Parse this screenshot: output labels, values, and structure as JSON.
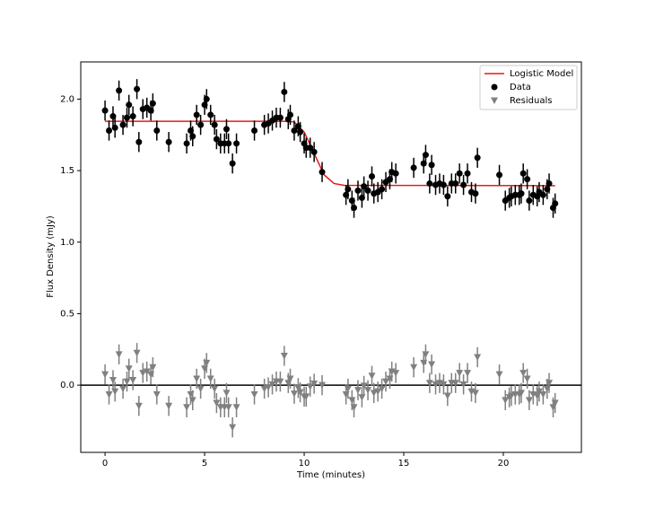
{
  "chart_data": {
    "type": "scatter",
    "xlabel": "Time (minutes)",
    "ylabel": "Flux Density (mJy)",
    "xlim": [
      -1.22,
      23.92
    ],
    "ylim": [
      -0.47,
      2.26
    ],
    "xticks": [
      0,
      5,
      10,
      15,
      20
    ],
    "yticks": [
      {
        "value": 0,
        "label": "0.0"
      },
      {
        "value": 0.5,
        "label": "0.5"
      },
      {
        "value": 1,
        "label": "1.0"
      },
      {
        "value": 1.5,
        "label": "1.5"
      },
      {
        "value": 2,
        "label": "2.0"
      }
    ],
    "hline": 0,
    "legend": "upper right",
    "x": [
      0.0,
      0.2,
      0.4,
      0.5,
      0.7,
      0.9,
      1.1,
      1.2,
      1.4,
      1.6,
      1.7,
      1.9,
      2.1,
      2.3,
      2.4,
      2.6,
      3.2,
      4.1,
      4.3,
      4.4,
      4.6,
      4.8,
      5.0,
      5.1,
      5.3,
      5.5,
      5.6,
      5.8,
      6.0,
      6.1,
      6.2,
      6.4,
      6.6,
      7.5,
      8.0,
      8.2,
      8.4,
      8.6,
      8.8,
      9.0,
      9.2,
      9.3,
      9.5,
      9.7,
      9.8,
      10.0,
      10.1,
      10.3,
      10.5,
      10.9,
      12.1,
      12.2,
      12.4,
      12.5,
      12.7,
      12.9,
      13.0,
      13.2,
      13.4,
      13.5,
      13.7,
      13.9,
      14.1,
      14.3,
      14.4,
      14.6,
      15.5,
      16.0,
      16.1,
      16.3,
      16.4,
      16.6,
      16.8,
      17.0,
      17.2,
      17.4,
      17.6,
      17.8,
      18.0,
      18.2,
      18.4,
      18.6,
      18.7,
      19.8,
      20.1,
      20.3,
      20.4,
      20.6,
      20.8,
      20.9,
      21.0,
      21.2,
      21.3,
      21.5,
      21.7,
      21.8,
      22.0,
      22.2,
      22.3,
      22.5,
      22.6
    ],
    "series": [
      {
        "name": "Logistic Model",
        "type": "line",
        "color": "#e41a1c",
        "x": [
          0,
          9,
          9.5,
          10,
          10.5,
          11,
          11.5,
          12,
          22.6
        ],
        "values": [
          1.845,
          1.845,
          1.84,
          1.77,
          1.62,
          1.47,
          1.41,
          1.397,
          1.395
        ]
      },
      {
        "name": "Data",
        "type": "scatter",
        "marker": "circle",
        "color": "#000000",
        "error": 0.07,
        "values": [
          1.92,
          1.78,
          1.88,
          1.8,
          2.06,
          1.82,
          1.87,
          1.96,
          1.88,
          2.07,
          1.7,
          1.93,
          1.94,
          1.92,
          1.97,
          1.78,
          1.7,
          1.69,
          1.78,
          1.74,
          1.89,
          1.82,
          1.96,
          2.0,
          1.89,
          1.82,
          1.72,
          1.69,
          1.69,
          1.79,
          1.69,
          1.55,
          1.69,
          1.78,
          1.82,
          1.83,
          1.85,
          1.87,
          1.87,
          2.05,
          1.86,
          1.89,
          1.78,
          1.81,
          1.77,
          1.69,
          1.66,
          1.66,
          1.63,
          1.49,
          1.33,
          1.37,
          1.29,
          1.24,
          1.36,
          1.31,
          1.39,
          1.36,
          1.46,
          1.34,
          1.35,
          1.37,
          1.42,
          1.44,
          1.49,
          1.48,
          1.52,
          1.55,
          1.61,
          1.41,
          1.54,
          1.4,
          1.41,
          1.4,
          1.32,
          1.41,
          1.41,
          1.48,
          1.4,
          1.48,
          1.35,
          1.34,
          1.59,
          1.47,
          1.29,
          1.31,
          1.32,
          1.33,
          1.33,
          1.34,
          1.48,
          1.44,
          1.29,
          1.33,
          1.32,
          1.35,
          1.33,
          1.37,
          1.41,
          1.24,
          1.27
        ]
      },
      {
        "name": "Residuals",
        "type": "scatter",
        "marker": "triangle-down",
        "color": "#808080",
        "error": 0.07,
        "values": [
          0.075,
          -0.065,
          0.035,
          -0.045,
          0.215,
          -0.025,
          0.025,
          0.115,
          0.035,
          0.225,
          -0.145,
          0.085,
          0.095,
          0.075,
          0.125,
          -0.065,
          -0.145,
          -0.155,
          -0.065,
          -0.105,
          0.045,
          -0.025,
          0.115,
          0.155,
          0.045,
          -0.025,
          -0.125,
          -0.155,
          -0.155,
          -0.055,
          -0.155,
          -0.295,
          -0.155,
          -0.065,
          -0.025,
          -0.015,
          0.005,
          0.025,
          0.025,
          0.205,
          0.015,
          0.045,
          -0.06,
          -0.02,
          -0.05,
          -0.08,
          -0.08,
          -0.01,
          0.01,
          0.0,
          -0.065,
          -0.025,
          -0.105,
          -0.155,
          -0.035,
          -0.085,
          -0.005,
          -0.035,
          0.065,
          -0.055,
          -0.045,
          -0.025,
          0.025,
          0.045,
          0.095,
          0.085,
          0.125,
          0.155,
          0.215,
          0.015,
          0.145,
          0.005,
          0.015,
          0.005,
          -0.075,
          0.015,
          0.015,
          0.085,
          0.005,
          0.085,
          -0.045,
          -0.055,
          0.195,
          0.075,
          -0.105,
          -0.085,
          -0.075,
          -0.065,
          -0.065,
          -0.055,
          0.085,
          0.045,
          -0.105,
          -0.065,
          -0.075,
          -0.045,
          -0.065,
          -0.025,
          0.015,
          -0.155,
          -0.125
        ]
      }
    ]
  }
}
